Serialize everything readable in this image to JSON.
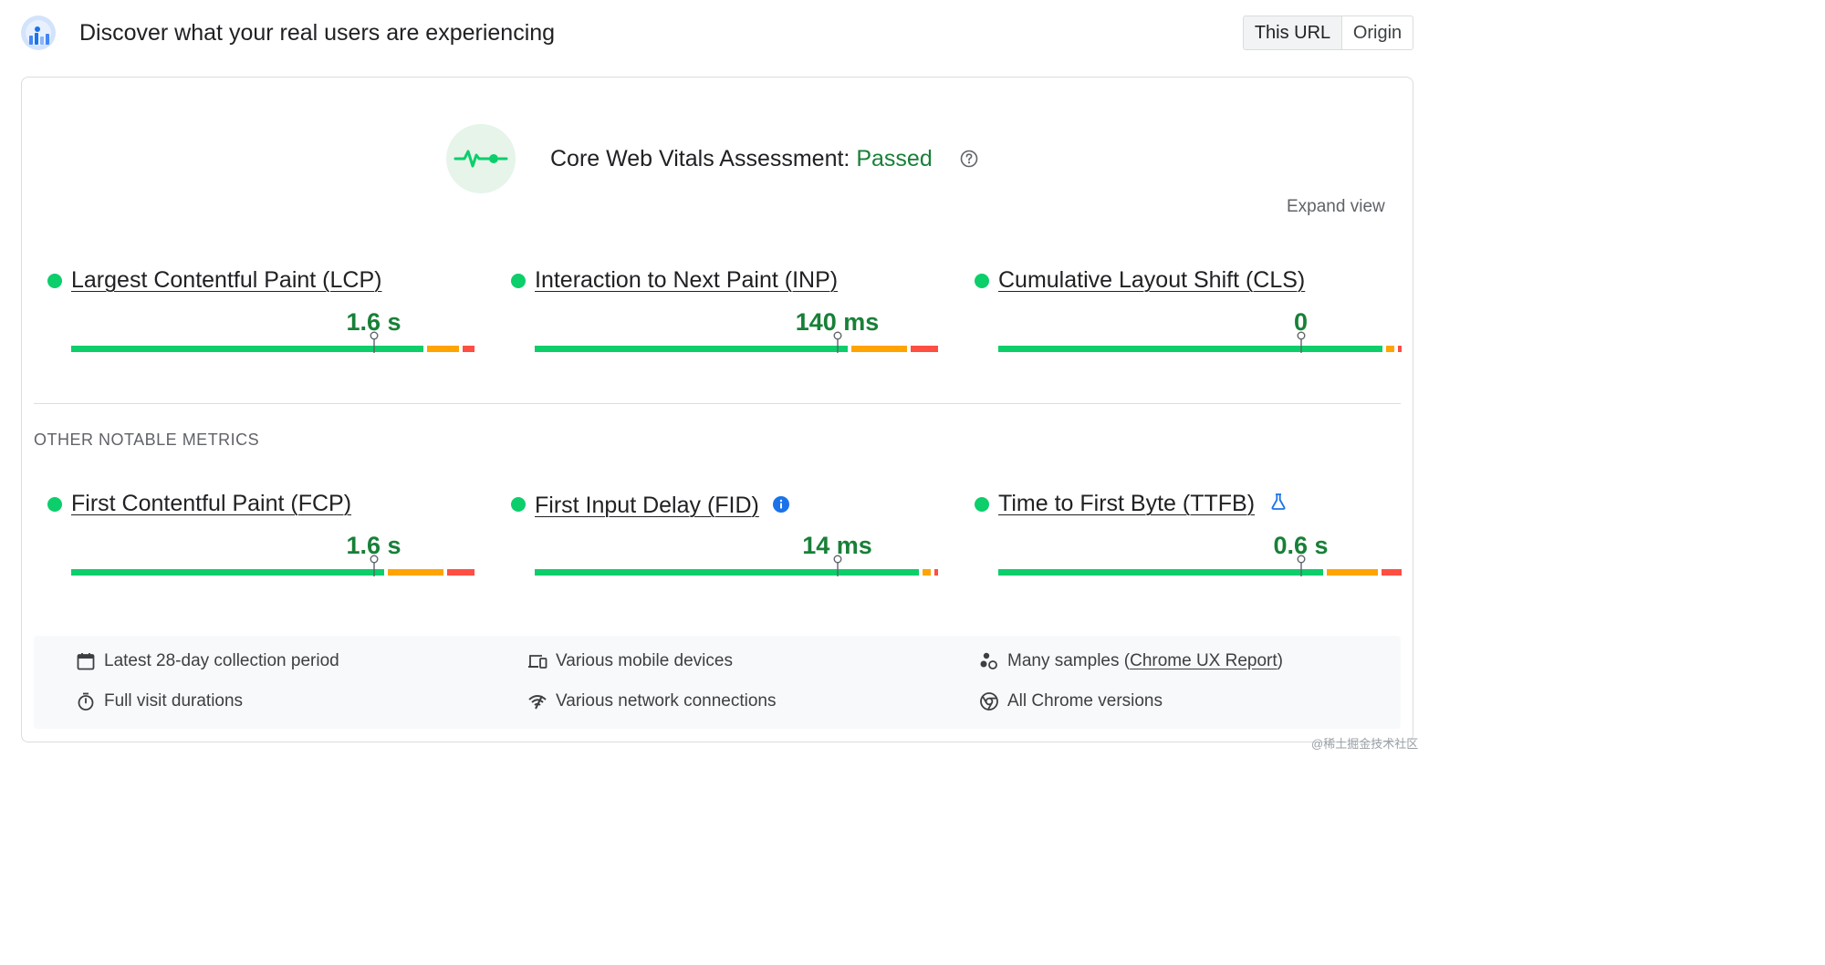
{
  "header": {
    "title": "Discover what your real users are experiencing",
    "logo_icon": "crux-report-icon",
    "toggle": {
      "this_url": "This URL",
      "origin": "Origin",
      "selected": "This URL"
    }
  },
  "assessment": {
    "icon": "heartbeat-icon",
    "label": "Core Web Vitals Assessment:",
    "status": "Passed",
    "help_icon": "help-circle-icon",
    "expand_label": "Expand view"
  },
  "core_metrics": [
    {
      "name": "Largest Contentful Paint (LCP)",
      "value": "1.6 s",
      "status": "good",
      "distribution_pct": {
        "good": 89,
        "needs_improvement": 8,
        "poor": 3
      }
    },
    {
      "name": "Interaction to Next Paint (INP)",
      "value": "140 ms",
      "status": "good",
      "distribution_pct": {
        "good": 79,
        "needs_improvement": 14,
        "poor": 7
      }
    },
    {
      "name": "Cumulative Layout Shift (CLS)",
      "value": "0",
      "status": "good",
      "distribution_pct": {
        "good": 97,
        "needs_improvement": 2,
        "poor": 1
      }
    }
  ],
  "other_section_label": "OTHER NOTABLE METRICS",
  "other_metrics": [
    {
      "name": "First Contentful Paint (FCP)",
      "value": "1.6 s",
      "status": "good",
      "distribution_pct": {
        "good": 79,
        "needs_improvement": 14,
        "poor": 7
      }
    },
    {
      "name": "First Input Delay (FID)",
      "value": "14 ms",
      "status": "good",
      "badge_icon": "info-icon",
      "distribution_pct": {
        "good": 97,
        "needs_improvement": 2,
        "poor": 1
      }
    },
    {
      "name": "Time to First Byte (TTFB)",
      "value": "0.6 s",
      "status": "good",
      "badge_icon": "experimental-flask-icon",
      "distribution_pct": {
        "good": 82,
        "needs_improvement": 13,
        "poor": 5
      }
    }
  ],
  "info": {
    "collection_period": "Latest 28-day collection period",
    "visit_durations": "Full visit durations",
    "devices": "Various mobile devices",
    "network": "Various network connections",
    "samples_prefix": "Many samples (",
    "samples_link": "Chrome UX Report",
    "samples_suffix": ")",
    "chrome_versions": "All Chrome versions"
  },
  "watermark": "@稀土掘金技术社区",
  "colors": {
    "good": "#0cce6b",
    "needs_improvement": "#ffa400",
    "poor": "#ff4e42",
    "pass_text": "#188038"
  }
}
